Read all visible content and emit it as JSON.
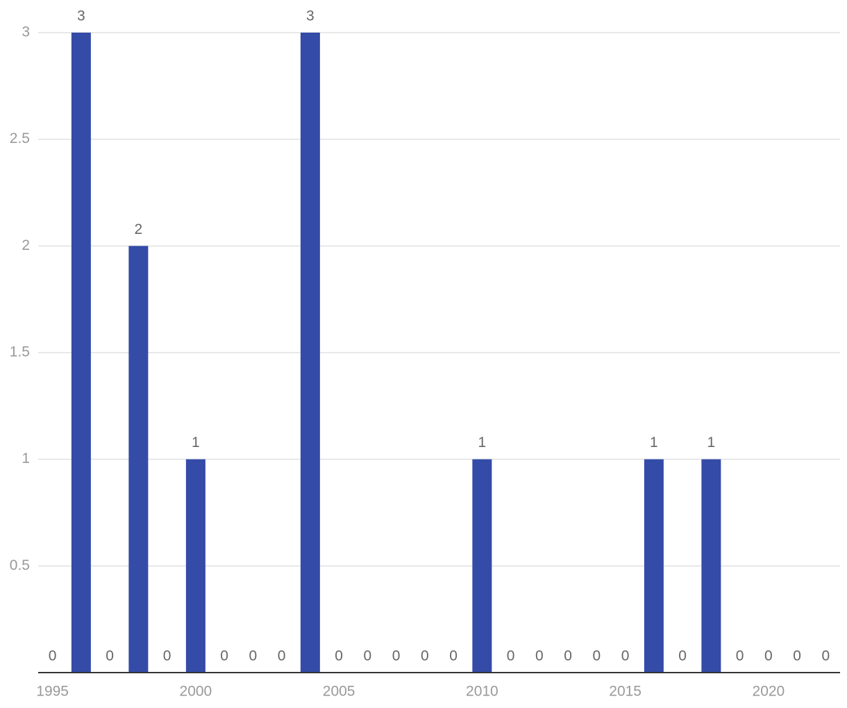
{
  "chart_data": {
    "type": "bar",
    "x": [
      1995,
      1996,
      1997,
      1998,
      1999,
      2000,
      2001,
      2002,
      2003,
      2004,
      2005,
      2006,
      2007,
      2008,
      2009,
      2010,
      2011,
      2012,
      2013,
      2014,
      2015,
      2016,
      2017,
      2018,
      2019,
      2020,
      2021,
      2022
    ],
    "values": [
      0,
      3,
      0,
      2,
      0,
      1,
      0,
      0,
      0,
      3,
      0,
      0,
      0,
      0,
      0,
      1,
      0,
      0,
      0,
      0,
      0,
      1,
      0,
      1,
      0,
      0,
      0,
      0
    ],
    "color": "#344ba8",
    "xlim": [
      1994.5,
      2022.5
    ],
    "xticks": [
      1995,
      2000,
      2005,
      2010,
      2015,
      2020
    ],
    "ylim": [
      0,
      3
    ],
    "yticks": [
      0.5,
      1,
      1.5,
      2,
      2.5,
      3
    ],
    "grid": true
  }
}
